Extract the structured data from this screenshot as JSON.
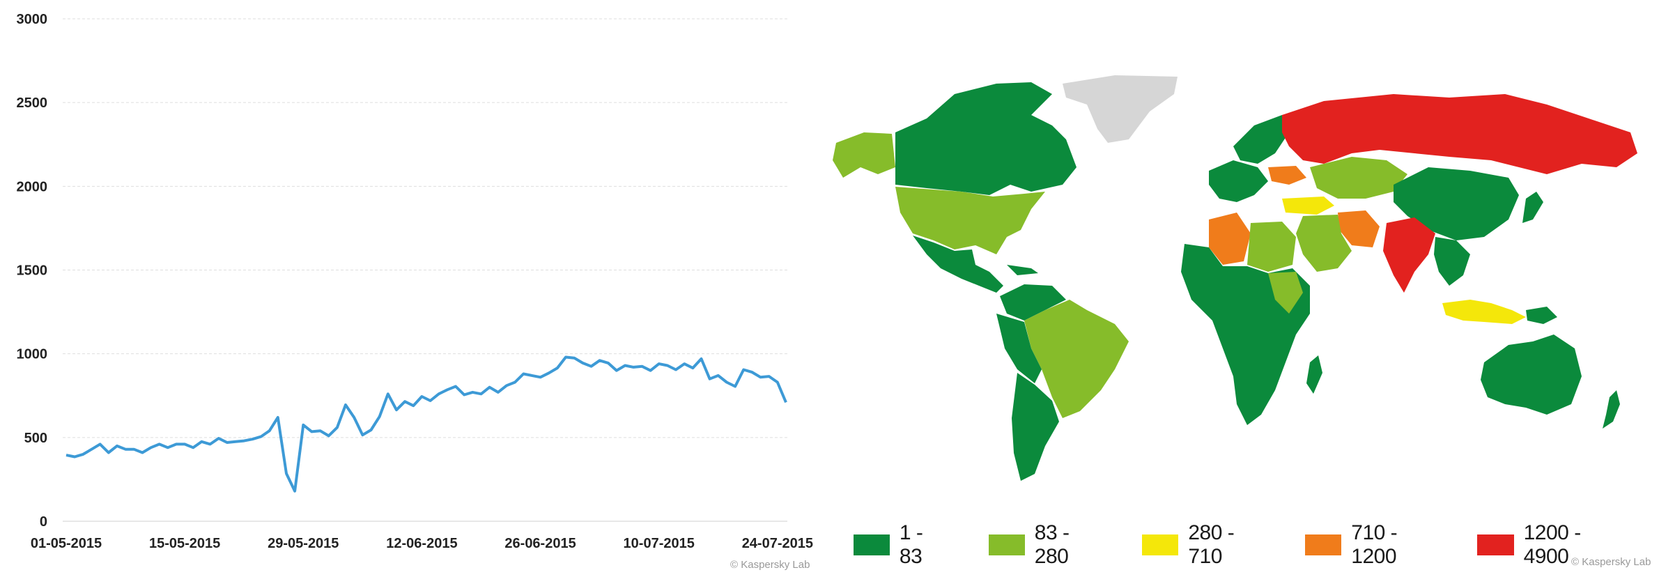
{
  "chart_data": [
    {
      "type": "line",
      "title": "",
      "xlabel": "",
      "ylabel": "",
      "ylim": [
        0,
        3000
      ],
      "yticks": [
        0,
        500,
        1000,
        1500,
        2000,
        2500,
        3000
      ],
      "grid": true,
      "line_color": "#3d9ad6",
      "x_tick_labels": [
        "01-05-2015",
        "15-05-2015",
        "29-05-2015",
        "12-06-2015",
        "26-06-2015",
        "10-07-2015",
        "24-07-2015"
      ],
      "x_tick_index": [
        0,
        14,
        28,
        42,
        56,
        70,
        84
      ],
      "series": [
        {
          "values": [
            395,
            385,
            400,
            430,
            460,
            410,
            450,
            430,
            430,
            410,
            440,
            460,
            440,
            460,
            460,
            440,
            475,
            460,
            495,
            470,
            475,
            480,
            490,
            505,
            540,
            620,
            285,
            180,
            575,
            535,
            540,
            510,
            560,
            695,
            620,
            515,
            545,
            625,
            760,
            665,
            715,
            690,
            745,
            720,
            760,
            785,
            805,
            755,
            770,
            760,
            800,
            770,
            810,
            830,
            880,
            870,
            860,
            885,
            915,
            980,
            975,
            945,
            925,
            960,
            945,
            900,
            930,
            920,
            925,
            900,
            940,
            930,
            905,
            940,
            915,
            970,
            850,
            870,
            830,
            805,
            905,
            890,
            860,
            865,
            830,
            710
          ]
        }
      ]
    },
    {
      "type": "map",
      "legend": [
        {
          "label": "1 - 83",
          "color": "#0b8a3c"
        },
        {
          "label": "83 - 280",
          "color": "#86bc2a"
        },
        {
          "label": "280 - 710",
          "color": "#f4e70a"
        },
        {
          "label": "710 - 1200",
          "color": "#f07c1b"
        },
        {
          "label": "1200 - 4900",
          "color": "#e2221f"
        }
      ],
      "no_data_color": "#d6d6d6"
    }
  ],
  "credits": {
    "left": "© Kaspersky Lab",
    "right": "© Kaspersky Lab"
  }
}
